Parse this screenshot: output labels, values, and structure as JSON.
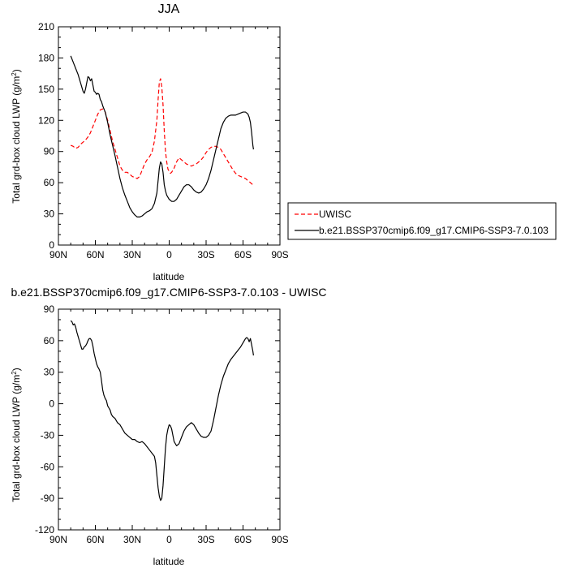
{
  "chart_data": [
    {
      "type": "line",
      "title": "JJA",
      "xlabel": "latitude",
      "ylabel": "Total grd-box cloud LWP (g/m²)",
      "xlim": [
        90,
        -90
      ],
      "ylim": [
        0,
        210
      ],
      "x_ticks": [
        90,
        60,
        30,
        0,
        -30,
        -60,
        -90
      ],
      "x_tick_labels": [
        "90N",
        "60N",
        "30N",
        "0",
        "30S",
        "60S",
        "90S"
      ],
      "y_ticks": [
        0,
        30,
        60,
        90,
        120,
        150,
        180,
        210
      ],
      "y_tick_labels": [
        "0",
        "30",
        "60",
        "90",
        "120",
        "150",
        "180",
        "210"
      ],
      "legend_position": "right",
      "series": [
        {
          "name": "UWISC",
          "color": "#ff0000",
          "dash": "dashed",
          "points": [
            [
              80,
              96
            ],
            [
              78,
              95
            ],
            [
              76,
              93
            ],
            [
              74,
              94
            ],
            [
              72,
              97
            ],
            [
              70,
              99
            ],
            [
              68,
              101
            ],
            [
              66,
              104
            ],
            [
              64,
              108
            ],
            [
              62,
              114
            ],
            [
              60,
              120
            ],
            [
              58,
              126
            ],
            [
              56,
              130
            ],
            [
              54,
              131
            ],
            [
              52,
              128
            ],
            [
              50,
              120
            ],
            [
              48,
              110
            ],
            [
              46,
              100
            ],
            [
              44,
              92
            ],
            [
              42,
              84
            ],
            [
              40,
              76
            ],
            [
              38,
              72
            ],
            [
              36,
              70
            ],
            [
              34,
              70
            ],
            [
              32,
              68
            ],
            [
              30,
              66
            ],
            [
              28,
              65
            ],
            [
              26,
              64
            ],
            [
              24,
              66
            ],
            [
              22,
              72
            ],
            [
              20,
              78
            ],
            [
              18,
              82
            ],
            [
              16,
              85
            ],
            [
              14,
              89
            ],
            [
              12,
              100
            ],
            [
              10,
              120
            ],
            [
              9,
              140
            ],
            [
              8,
              157
            ],
            [
              7,
              160
            ],
            [
              6,
              152
            ],
            [
              5,
              135
            ],
            [
              4,
              110
            ],
            [
              3,
              90
            ],
            [
              2,
              80
            ],
            [
              1,
              73
            ],
            [
              0,
              71
            ],
            [
              -1,
              69
            ],
            [
              -2,
              70
            ],
            [
              -4,
              74
            ],
            [
              -6,
              80
            ],
            [
              -8,
              84
            ],
            [
              -10,
              82
            ],
            [
              -12,
              80
            ],
            [
              -14,
              78
            ],
            [
              -16,
              77
            ],
            [
              -18,
              76
            ],
            [
              -20,
              77
            ],
            [
              -22,
              78
            ],
            [
              -24,
              80
            ],
            [
              -26,
              82
            ],
            [
              -28,
              85
            ],
            [
              -30,
              89
            ],
            [
              -32,
              92
            ],
            [
              -34,
              94
            ],
            [
              -36,
              95
            ],
            [
              -38,
              95
            ],
            [
              -40,
              94
            ],
            [
              -42,
              92
            ],
            [
              -44,
              88
            ],
            [
              -46,
              84
            ],
            [
              -48,
              80
            ],
            [
              -50,
              76
            ],
            [
              -52,
              72
            ],
            [
              -54,
              69
            ],
            [
              -56,
              67
            ],
            [
              -58,
              66
            ],
            [
              -60,
              65
            ],
            [
              -62,
              64
            ],
            [
              -64,
              62
            ],
            [
              -66,
              60
            ],
            [
              -67,
              59
            ],
            [
              -68,
              58
            ]
          ]
        },
        {
          "name": "b.e21.BSSP370cmip6.f09_g17.CMIP6-SSP3-7.0.103",
          "color": "#000000",
          "dash": "solid",
          "points": [
            [
              80,
              182
            ],
            [
              78,
              176
            ],
            [
              76,
              170
            ],
            [
              74,
              164
            ],
            [
              72,
              156
            ],
            [
              70,
              148
            ],
            [
              69,
              146
            ],
            [
              68,
              150
            ],
            [
              67,
              156
            ],
            [
              66,
              162
            ],
            [
              65,
              161
            ],
            [
              64,
              158
            ],
            [
              63,
              160
            ],
            [
              62,
              154
            ],
            [
              61,
              148
            ],
            [
              60,
              147
            ],
            [
              59,
              145
            ],
            [
              58,
              146
            ],
            [
              57,
              145
            ],
            [
              56,
              140
            ],
            [
              55,
              138
            ],
            [
              54,
              134
            ],
            [
              52,
              128
            ],
            [
              50,
              118
            ],
            [
              48,
              106
            ],
            [
              46,
              96
            ],
            [
              44,
              86
            ],
            [
              42,
              75
            ],
            [
              40,
              64
            ],
            [
              38,
              55
            ],
            [
              36,
              48
            ],
            [
              34,
              42
            ],
            [
              32,
              36
            ],
            [
              30,
              32
            ],
            [
              28,
              29
            ],
            [
              26,
              27
            ],
            [
              24,
              27
            ],
            [
              22,
              28
            ],
            [
              20,
              30
            ],
            [
              18,
              32
            ],
            [
              16,
              33
            ],
            [
              14,
              35
            ],
            [
              12,
              40
            ],
            [
              10,
              50
            ],
            [
              9,
              62
            ],
            [
              8,
              74
            ],
            [
              7,
              80
            ],
            [
              6,
              78
            ],
            [
              5,
              70
            ],
            [
              4,
              58
            ],
            [
              3,
              52
            ],
            [
              2,
              48
            ],
            [
              0,
              44
            ],
            [
              -2,
              42
            ],
            [
              -4,
              42
            ],
            [
              -6,
              44
            ],
            [
              -8,
              48
            ],
            [
              -10,
              52
            ],
            [
              -12,
              56
            ],
            [
              -14,
              58
            ],
            [
              -16,
              58
            ],
            [
              -18,
              56
            ],
            [
              -20,
              53
            ],
            [
              -22,
              51
            ],
            [
              -24,
              50
            ],
            [
              -26,
              51
            ],
            [
              -28,
              54
            ],
            [
              -30,
              58
            ],
            [
              -32,
              64
            ],
            [
              -34,
              72
            ],
            [
              -36,
              82
            ],
            [
              -38,
              92
            ],
            [
              -40,
              102
            ],
            [
              -42,
              112
            ],
            [
              -44,
              118
            ],
            [
              -46,
              122
            ],
            [
              -48,
              124
            ],
            [
              -50,
              125
            ],
            [
              -52,
              125
            ],
            [
              -54,
              125
            ],
            [
              -56,
              126
            ],
            [
              -58,
              127
            ],
            [
              -60,
              128
            ],
            [
              -62,
              128
            ],
            [
              -64,
              126
            ],
            [
              -65,
              123
            ],
            [
              -66,
              118
            ],
            [
              -67,
              108
            ],
            [
              -68,
              96
            ],
            [
              -68.5,
              92
            ]
          ]
        }
      ]
    },
    {
      "type": "line",
      "title": "b.e21.BSSP370cmip6.f09_g17.CMIP6-SSP3-7.0.103 - UWISC",
      "xlabel": "latitude",
      "ylabel": "Total grd-box cloud LWP (g/m²)",
      "xlim": [
        90,
        -90
      ],
      "ylim": [
        -120,
        90
      ],
      "x_ticks": [
        90,
        60,
        30,
        0,
        -30,
        -60,
        -90
      ],
      "x_tick_labels": [
        "90N",
        "60N",
        "30N",
        "0",
        "30S",
        "60S",
        "90S"
      ],
      "y_ticks": [
        -120,
        -90,
        -60,
        -30,
        0,
        30,
        60,
        90
      ],
      "y_tick_labels": [
        "-120",
        "-90",
        "-60",
        "-30",
        "0",
        "30",
        "60",
        "90"
      ],
      "series": [
        {
          "color": "#000000",
          "dash": "solid",
          "points": [
            [
              80,
              79
            ],
            [
              79,
              78
            ],
            [
              78,
              75
            ],
            [
              77,
              76
            ],
            [
              76,
              73
            ],
            [
              75,
              68
            ],
            [
              74,
              64
            ],
            [
              73,
              60
            ],
            [
              72,
              56
            ],
            [
              71,
              52
            ],
            [
              70,
              52
            ],
            [
              69,
              54
            ],
            [
              68,
              55
            ],
            [
              67,
              57
            ],
            [
              66,
              60
            ],
            [
              65,
              62
            ],
            [
              64,
              62
            ],
            [
              63,
              60
            ],
            [
              62,
              55
            ],
            [
              61,
              48
            ],
            [
              60,
              43
            ],
            [
              59,
              38
            ],
            [
              58,
              35
            ],
            [
              57,
              33
            ],
            [
              56,
              30
            ],
            [
              55,
              22
            ],
            [
              54,
              13
            ],
            [
              53,
              8
            ],
            [
              52,
              5
            ],
            [
              51,
              3
            ],
            [
              50,
              -2
            ],
            [
              49,
              -4
            ],
            [
              48,
              -6
            ],
            [
              47,
              -10
            ],
            [
              46,
              -12
            ],
            [
              44,
              -14
            ],
            [
              42,
              -18
            ],
            [
              40,
              -20
            ],
            [
              38,
              -24
            ],
            [
              36,
              -28
            ],
            [
              34,
              -30
            ],
            [
              32,
              -32
            ],
            [
              30,
              -34
            ],
            [
              28,
              -34
            ],
            [
              26,
              -36
            ],
            [
              24,
              -37
            ],
            [
              22,
              -36
            ],
            [
              20,
              -38
            ],
            [
              18,
              -41
            ],
            [
              16,
              -44
            ],
            [
              14,
              -47
            ],
            [
              12,
              -50
            ],
            [
              11,
              -56
            ],
            [
              10,
              -68
            ],
            [
              9,
              -80
            ],
            [
              8,
              -88
            ],
            [
              7,
              -92
            ],
            [
              6,
              -90
            ],
            [
              5,
              -78
            ],
            [
              4,
              -60
            ],
            [
              3,
              -42
            ],
            [
              2,
              -30
            ],
            [
              1,
              -24
            ],
            [
              0,
              -20
            ],
            [
              -1,
              -21
            ],
            [
              -2,
              -24
            ],
            [
              -3,
              -30
            ],
            [
              -4,
              -36
            ],
            [
              -6,
              -40
            ],
            [
              -8,
              -38
            ],
            [
              -10,
              -32
            ],
            [
              -12,
              -26
            ],
            [
              -14,
              -22
            ],
            [
              -16,
              -20
            ],
            [
              -18,
              -18
            ],
            [
              -20,
              -20
            ],
            [
              -22,
              -24
            ],
            [
              -24,
              -28
            ],
            [
              -26,
              -31
            ],
            [
              -28,
              -32
            ],
            [
              -30,
              -32
            ],
            [
              -32,
              -30
            ],
            [
              -34,
              -26
            ],
            [
              -36,
              -16
            ],
            [
              -38,
              -4
            ],
            [
              -40,
              8
            ],
            [
              -42,
              18
            ],
            [
              -44,
              26
            ],
            [
              -46,
              32
            ],
            [
              -48,
              38
            ],
            [
              -50,
              42
            ],
            [
              -52,
              45
            ],
            [
              -54,
              48
            ],
            [
              -56,
              51
            ],
            [
              -58,
              54
            ],
            [
              -60,
              58
            ],
            [
              -62,
              62
            ],
            [
              -63,
              63
            ],
            [
              -64,
              62
            ],
            [
              -65,
              59
            ],
            [
              -66,
              62
            ],
            [
              -67,
              56
            ],
            [
              -68,
              50
            ],
            [
              -68.5,
              46
            ]
          ]
        }
      ]
    }
  ]
}
